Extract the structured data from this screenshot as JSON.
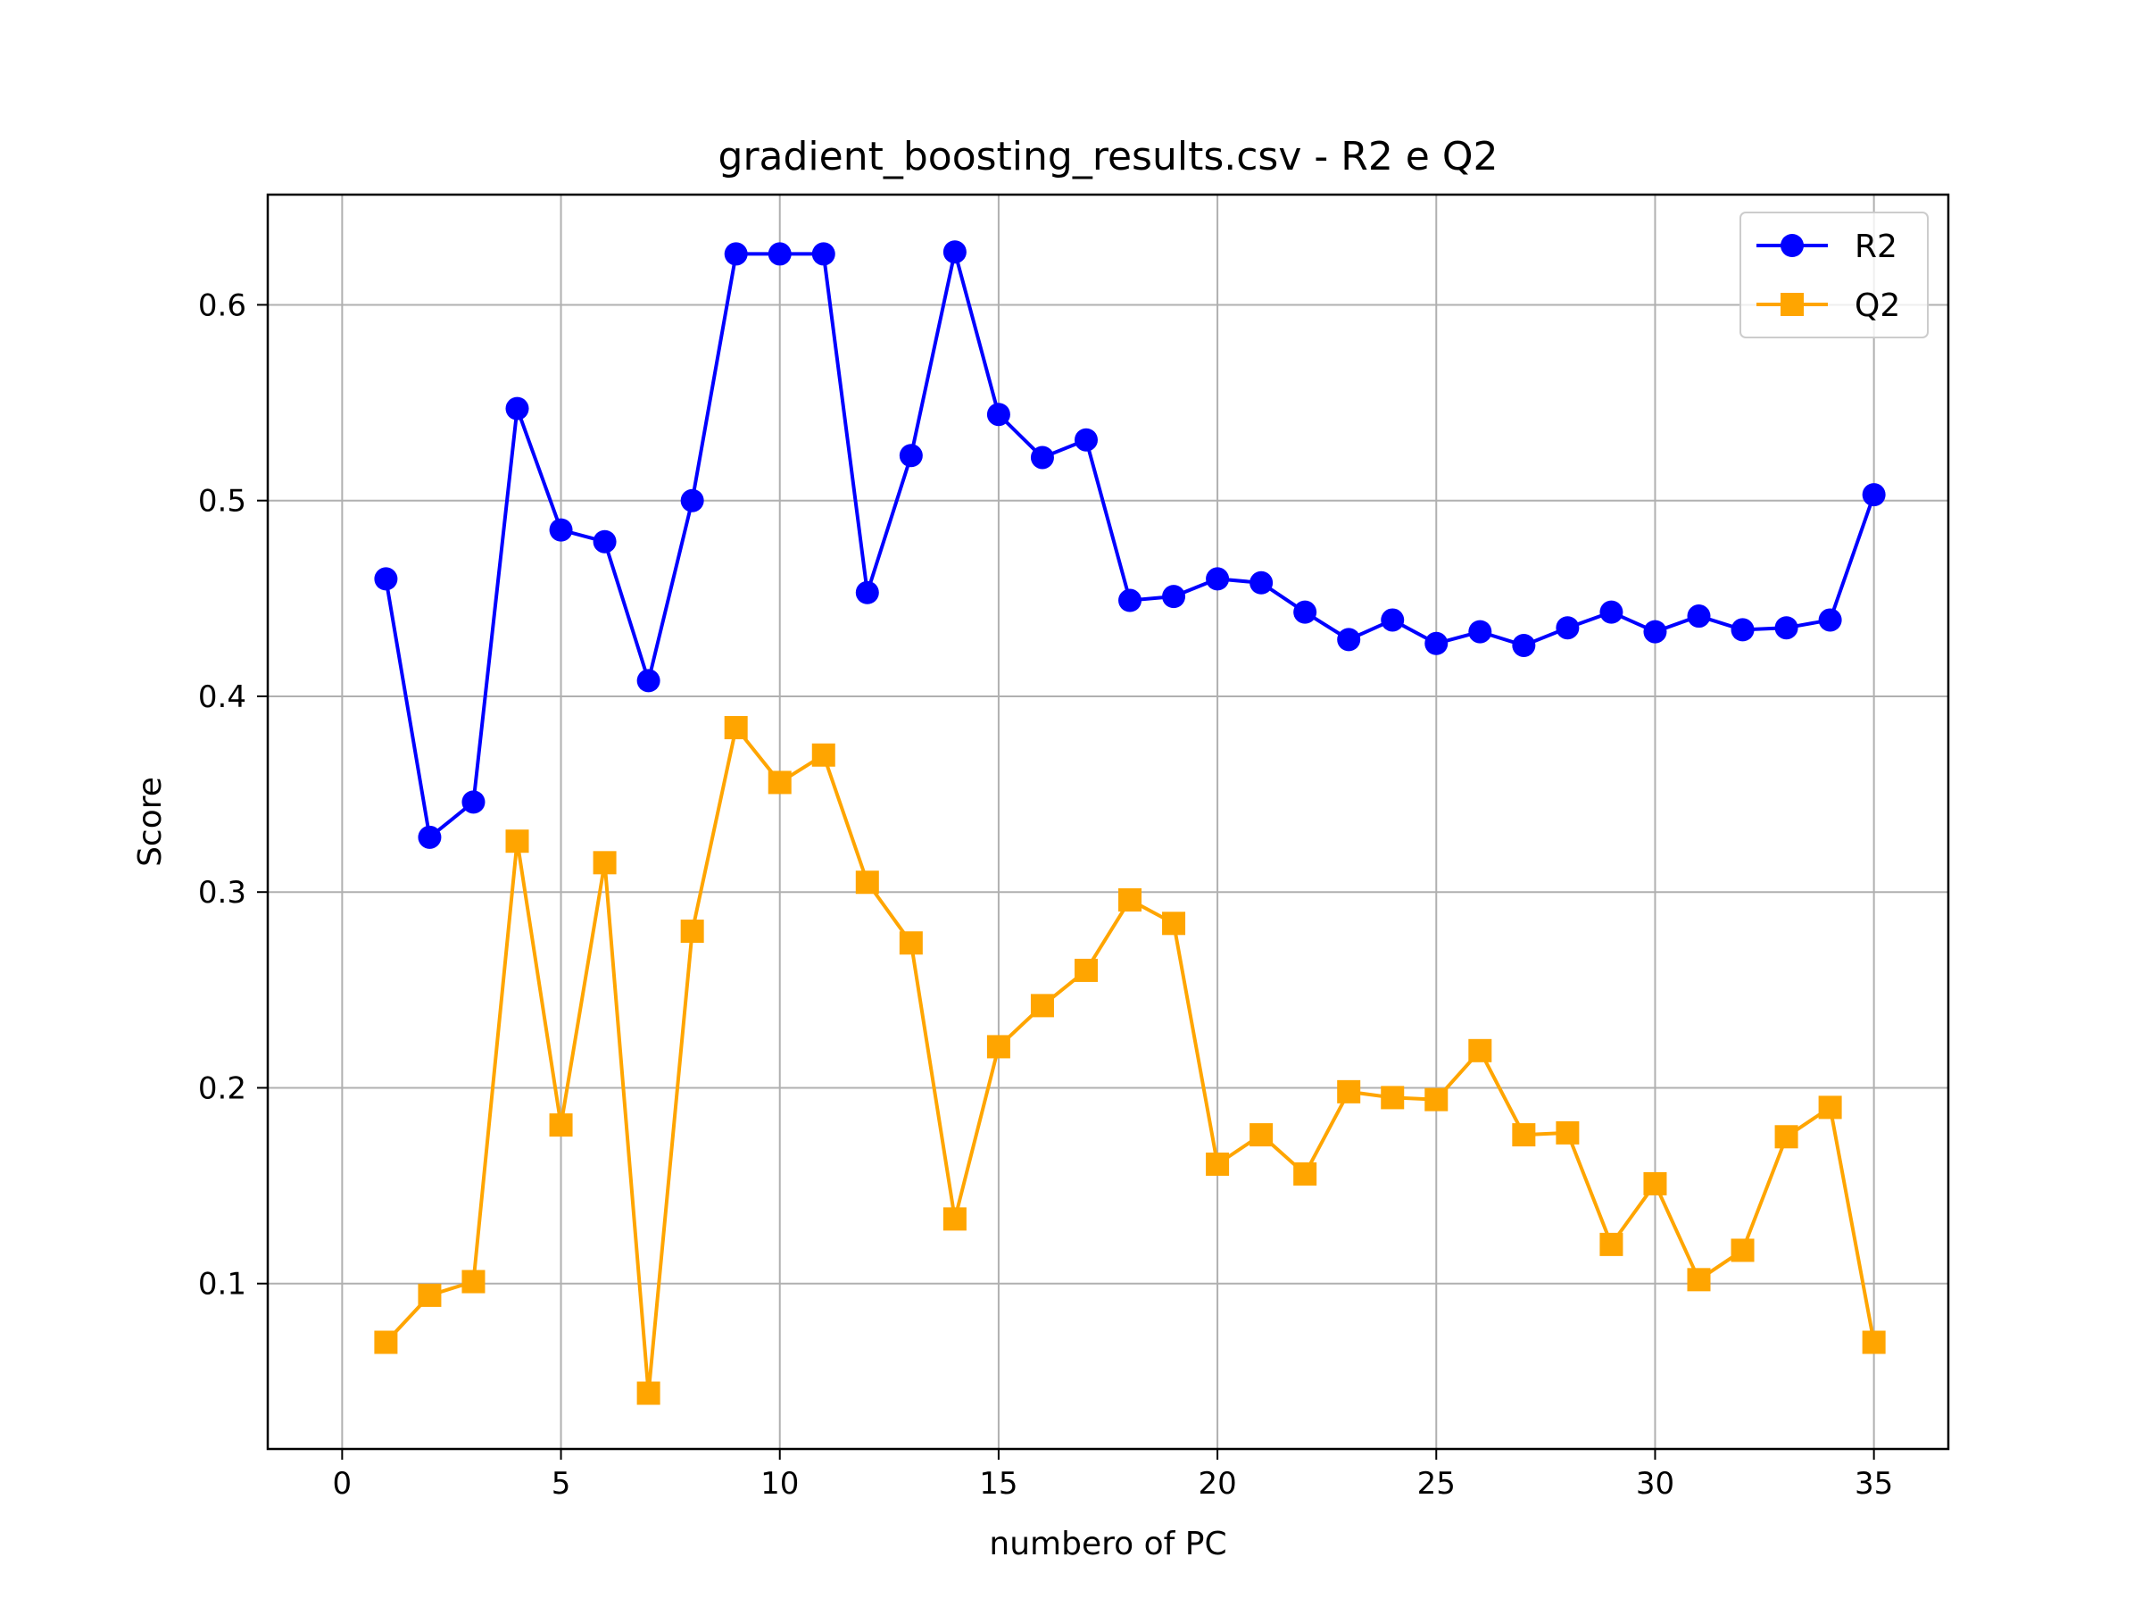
{
  "chart_data": {
    "type": "line",
    "title": "gradient_boosting_results.csv - R2 e Q2",
    "xlabel": "numbero of PC",
    "ylabel": "Score",
    "xlim": [
      -1.7,
      36.7
    ],
    "ylim": [
      0.0155,
      0.6563
    ],
    "xticks": [
      0,
      5,
      10,
      15,
      20,
      25,
      30,
      35
    ],
    "xtick_labels": [
      "0",
      "5",
      "10",
      "15",
      "20",
      "25",
      "30",
      "35"
    ],
    "yticks": [
      0.1,
      0.2,
      0.3,
      0.4,
      0.5,
      0.6
    ],
    "ytick_labels": [
      "0.1",
      "0.2",
      "0.3",
      "0.4",
      "0.5",
      "0.6"
    ],
    "grid": true,
    "legend_position": "top-right",
    "x": [
      1,
      2,
      3,
      4,
      5,
      6,
      7,
      8,
      9,
      10,
      11,
      12,
      13,
      14,
      15,
      16,
      17,
      18,
      19,
      20,
      21,
      22,
      23,
      24,
      25,
      26,
      27,
      28,
      29,
      30,
      31,
      32,
      33,
      34,
      35
    ],
    "series": [
      {
        "name": "R2",
        "color": "#0000ff",
        "marker": "circle",
        "values": [
          0.46,
          0.328,
          0.346,
          0.547,
          0.485,
          0.479,
          0.408,
          0.5,
          0.626,
          0.626,
          0.626,
          0.453,
          0.523,
          0.627,
          0.544,
          0.522,
          0.531,
          0.449,
          0.451,
          0.46,
          0.458,
          0.443,
          0.429,
          0.439,
          0.427,
          0.433,
          0.426,
          0.435,
          0.443,
          0.433,
          0.441,
          0.434,
          0.435,
          0.439,
          0.503
        ]
      },
      {
        "name": "Q2",
        "color": "#ffa500",
        "marker": "square",
        "values": [
          0.07,
          0.094,
          0.101,
          0.326,
          0.181,
          0.315,
          0.044,
          0.28,
          0.384,
          0.356,
          0.37,
          0.305,
          0.274,
          0.133,
          0.221,
          0.242,
          0.26,
          0.296,
          0.284,
          0.161,
          0.176,
          0.156,
          0.198,
          0.195,
          0.194,
          0.219,
          0.176,
          0.177,
          0.12,
          0.151,
          0.102,
          0.117,
          0.175,
          0.19,
          0.07
        ]
      }
    ]
  }
}
